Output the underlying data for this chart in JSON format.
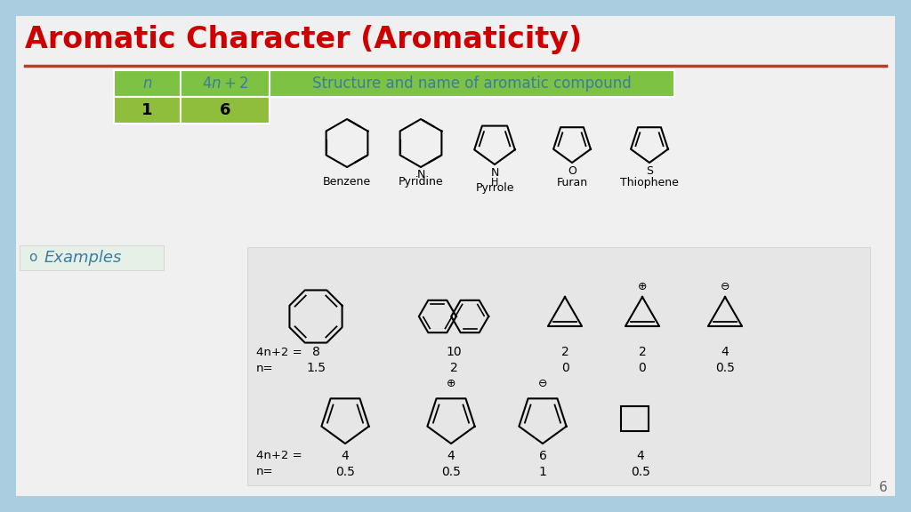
{
  "title": "Aromatic Character (Aromaticity)",
  "title_color": "#cc0000",
  "title_fontsize": 24,
  "bg_color": "#aacde0",
  "slide_bg": "#f0f0f0",
  "header_green": "#7dc242",
  "header_text_color": "#3a7ca5",
  "table_header": [
    "n",
    "4n + 2",
    "Structure and name of aromatic compound"
  ],
  "table_row": [
    "1",
    "6"
  ],
  "compounds": [
    "Benzene",
    "Pyridine",
    "Pyrrole",
    "Furan",
    "Thiophene"
  ],
  "examples_label": "Examples",
  "examples_color": "#3a7ca5",
  "row1_4n2": [
    "8",
    "10",
    "2",
    "2",
    "4"
  ],
  "row1_n": [
    "1.5",
    "2",
    "0",
    "0",
    "0.5"
  ],
  "row2_4n2": [
    "4",
    "4",
    "6",
    "4"
  ],
  "row2_n": [
    "0.5",
    "0.5",
    "1",
    "0.5"
  ],
  "page_number": "6",
  "line_color": "#c0392b",
  "gray_box_bg": "#e8e8e8"
}
